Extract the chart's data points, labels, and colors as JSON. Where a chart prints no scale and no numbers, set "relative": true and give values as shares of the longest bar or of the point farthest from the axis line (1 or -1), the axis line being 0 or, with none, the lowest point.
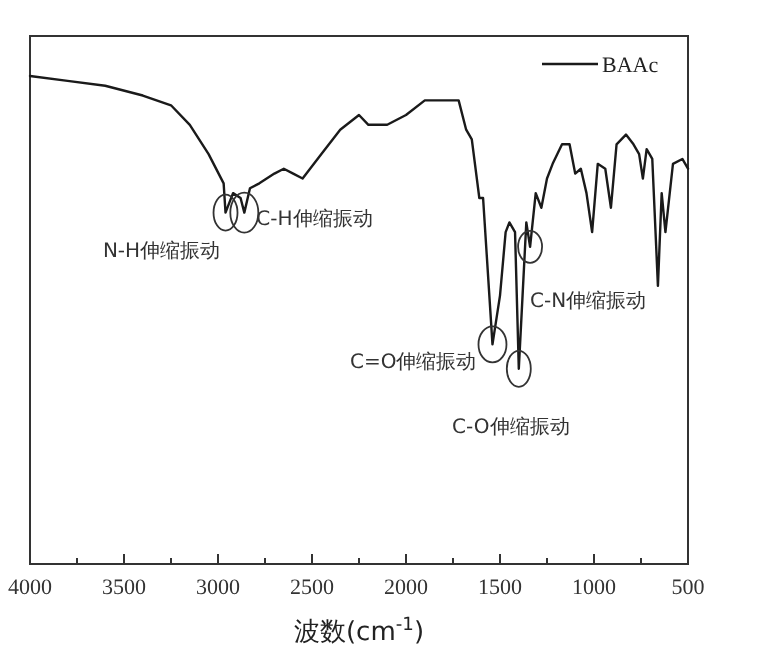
{
  "chart_data": {
    "type": "line",
    "relative": true,
    "xlabel": "波数(cm$^{-1}$)",
    "xlim": [
      4000,
      500
    ],
    "xticks": [
      4000,
      {
        "value": 3750,
        "label": null
      },
      3500,
      {
        "value": 3250,
        "label": null
      },
      3000,
      {
        "value": 2750,
        "label": null
      },
      2500,
      {
        "value": 2250,
        "label": null
      },
      2000,
      {
        "value": 1750,
        "label": null
      },
      1500,
      {
        "value": 1250,
        "label": null
      },
      1000,
      {
        "value": 750,
        "label": null
      },
      500
    ],
    "x": [
      4000,
      3800,
      3600,
      3400,
      3250,
      3150,
      3050,
      2970,
      2960,
      2920,
      2880,
      2860,
      2830,
      2780,
      2700,
      2650,
      2600,
      2550,
      2450,
      2350,
      2250,
      2200,
      2150,
      2100,
      2000,
      1900,
      1800,
      1720,
      1680,
      1650,
      1610,
      1590,
      1540,
      1500,
      1470,
      1450,
      1420,
      1400,
      1380,
      1360,
      1340,
      1310,
      1280,
      1250,
      1220,
      1170,
      1130,
      1100,
      1070,
      1040,
      1010,
      980,
      940,
      910,
      880,
      830,
      790,
      760,
      740,
      720,
      690,
      660,
      640,
      620,
      580,
      530,
      500
    ],
    "series": [
      {
        "name": "BAAc",
        "color": "#1a1a1a",
        "values": [
          1.0,
          0.99,
          0.98,
          0.96,
          0.94,
          0.9,
          0.84,
          0.78,
          0.72,
          0.76,
          0.75,
          0.72,
          0.77,
          0.78,
          0.8,
          0.81,
          0.8,
          0.79,
          0.84,
          0.89,
          0.92,
          0.9,
          0.9,
          0.9,
          0.92,
          0.95,
          0.95,
          0.95,
          0.89,
          0.87,
          0.75,
          0.75,
          0.45,
          0.55,
          0.68,
          0.7,
          0.68,
          0.4,
          0.55,
          0.7,
          0.65,
          0.76,
          0.73,
          0.79,
          0.82,
          0.86,
          0.86,
          0.8,
          0.81,
          0.76,
          0.68,
          0.82,
          0.81,
          0.73,
          0.86,
          0.88,
          0.86,
          0.84,
          0.79,
          0.85,
          0.83,
          0.57,
          0.76,
          0.68,
          0.82,
          0.83,
          0.81
        ]
      }
    ],
    "annotations": [
      {
        "text": "N-H伸缩振动",
        "x": 2960,
        "y": 0.72
      },
      {
        "text": "C-H伸缩振动",
        "x": 2860,
        "y": 0.72
      },
      {
        "text": "C=O伸缩振动",
        "x": 1540,
        "y": 0.45
      },
      {
        "text": "C-O伸缩振动",
        "x": 1400,
        "y": 0.4
      },
      {
        "text": "C-N伸缩振动",
        "x": 1340,
        "y": 0.65
      }
    ],
    "legend": "top right"
  }
}
